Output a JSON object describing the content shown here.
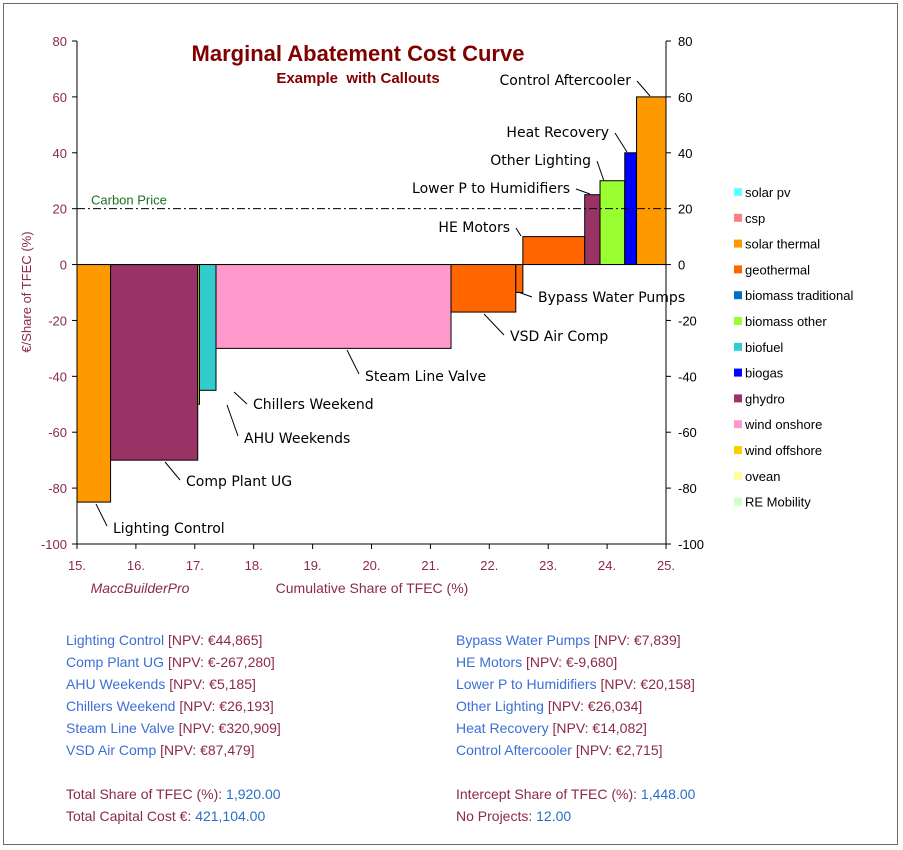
{
  "chart_data": {
    "type": "bar",
    "title": "Marginal Abatement Cost Curve",
    "subtitle": "Example  with Callouts",
    "xlabel": "Cumulative Share of TFEC (%)",
    "ylabel": "€/Share of TFEC (%)",
    "watermark": "MaccBuilderPro",
    "xlim": [
      15,
      25
    ],
    "ylim": [
      -100,
      80
    ],
    "x_ticks": [
      "15.",
      "16.",
      "17.",
      "18.",
      "19.",
      "20.",
      "21.",
      "22.",
      "23.",
      "24.",
      "25."
    ],
    "y_ticks": [
      "80",
      "60",
      "40",
      "20",
      "0",
      "-20",
      "-40",
      "-60",
      "-80",
      "-100"
    ],
    "reference_line": {
      "label": "Carbon Price",
      "value": 20
    },
    "bars": [
      {
        "name": "Lighting Control",
        "x0": 15.0,
        "x1": 15.57,
        "value": -85,
        "color": "#ff9900"
      },
      {
        "name": "Comp Plant UG",
        "x0": 15.57,
        "x1": 17.05,
        "value": -70,
        "color": "#993366"
      },
      {
        "name": "AHU Weekends",
        "x0": 17.05,
        "x1": 17.08,
        "value": -50,
        "color": "#99ff33"
      },
      {
        "name": "Chillers Weekend",
        "x0": 17.08,
        "x1": 17.36,
        "value": -45,
        "color": "#33cccc"
      },
      {
        "name": "Steam Line Valve",
        "x0": 17.36,
        "x1": 21.35,
        "value": -30,
        "color": "#ff99cc"
      },
      {
        "name": "VSD Air Comp",
        "x0": 21.35,
        "x1": 22.45,
        "value": -17,
        "color": "#ff6600"
      },
      {
        "name": "Bypass Water Pumps",
        "x0": 22.45,
        "x1": 22.57,
        "value": -10,
        "color": "#ff6600"
      },
      {
        "name": "HE Motors",
        "x0": 22.57,
        "x1": 23.62,
        "value": 10,
        "color": "#ff6600"
      },
      {
        "name": "Lower P to Humidifiers",
        "x0": 23.62,
        "x1": 23.88,
        "value": 25,
        "color": "#993366"
      },
      {
        "name": "Other Lighting",
        "x0": 23.88,
        "x1": 24.3,
        "value": 30,
        "color": "#99ff33"
      },
      {
        "name": "Heat Recovery",
        "x0": 24.3,
        "x1": 24.5,
        "value": 40,
        "color": "#0000ff"
      },
      {
        "name": "Control Aftercooler",
        "x0": 24.5,
        "x1": 25.0,
        "value": 60,
        "color": "#ff9900"
      }
    ],
    "legend_position": "right",
    "legend": [
      {
        "name": "solar pv",
        "color": "#66ffff"
      },
      {
        "name": "csp",
        "color": "#ff8080"
      },
      {
        "name": "solar thermal",
        "color": "#ff9900"
      },
      {
        "name": "geothermal",
        "color": "#ff6600"
      },
      {
        "name": "biomass traditional",
        "color": "#0070c0"
      },
      {
        "name": "biomass other",
        "color": "#99ff33"
      },
      {
        "name": "biofuel",
        "color": "#33cccc"
      },
      {
        "name": "biogas",
        "color": "#0000ff"
      },
      {
        "name": "ghydro",
        "color": "#993366"
      },
      {
        "name": "wind onshore",
        "color": "#ff99cc"
      },
      {
        "name": "wind offshore",
        "color": "#ffcc00"
      },
      {
        "name": "ovean",
        "color": "#ffff99"
      },
      {
        "name": "RE Mobility",
        "color": "#ccffcc"
      }
    ]
  },
  "projects_left": [
    {
      "name": "Lighting Control",
      "npv": "[NPV: €44,865]"
    },
    {
      "name": "Comp Plant UG",
      "npv": "[NPV: €-267,280]"
    },
    {
      "name": "AHU Weekends",
      "npv": "[NPV: €5,185]"
    },
    {
      "name": "Chillers Weekend",
      "npv": "[NPV: €26,193]"
    },
    {
      "name": "Steam Line Valve",
      "npv": "[NPV: €320,909]"
    },
    {
      "name": "VSD Air Comp",
      "npv": "[NPV: €87,479]"
    }
  ],
  "projects_right": [
    {
      "name": "Bypass Water Pumps",
      "npv": "[NPV: €7,839]"
    },
    {
      "name": "HE Motors",
      "npv": "[NPV: €-9,680]"
    },
    {
      "name": "Lower P to Humidifiers",
      "npv": "[NPV: €20,158]"
    },
    {
      "name": "Other Lighting",
      "npv": "[NPV: €26,034]"
    },
    {
      "name": "Heat Recovery",
      "npv": "[NPV: €14,082]"
    },
    {
      "name": "Control Aftercooler",
      "npv": "[NPV: €2,715]"
    }
  ],
  "summary": {
    "total_share_label": "Total Share of TFEC (%):",
    "total_share_value": "1,920.00",
    "capital_cost_label": "Total Capital Cost €:",
    "capital_cost_value": "421,104.00",
    "intercept_label": "Intercept Share of TFEC (%):",
    "intercept_value": "1,448.00",
    "projects_label": "No Projects:",
    "projects_value": "12.00"
  }
}
